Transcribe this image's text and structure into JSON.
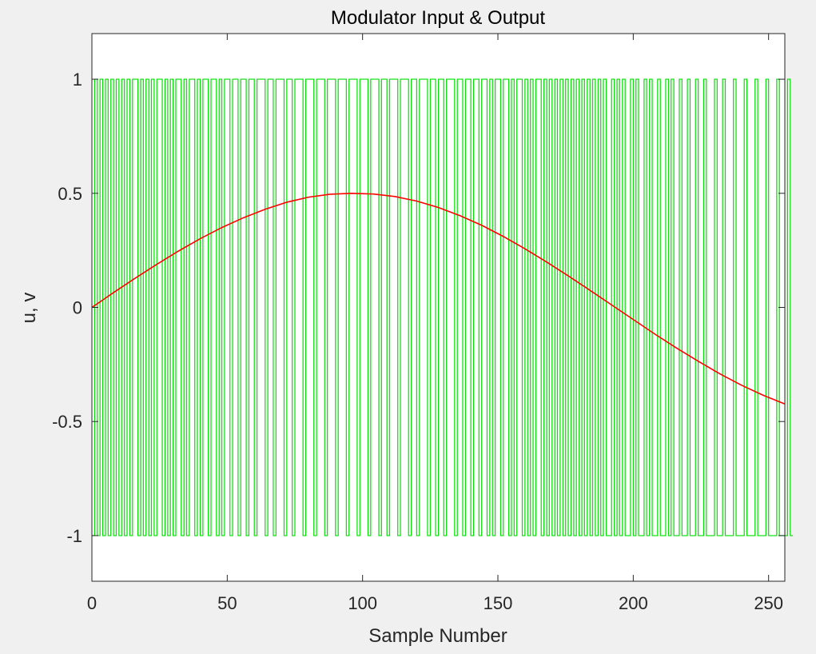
{
  "chart_data": {
    "type": "line",
    "title": "Modulator Input & Output",
    "xlabel": "Sample Number",
    "ylabel": "u, v",
    "xlim": [
      0,
      256
    ],
    "ylim": [
      -1.2,
      1.2
    ],
    "x_ticks": [
      0,
      50,
      100,
      150,
      200,
      250
    ],
    "x_tick_labels": [
      "0",
      "50",
      "100",
      "150",
      "200",
      "250"
    ],
    "y_ticks": [
      1,
      0.5,
      0,
      -0.5,
      -1
    ],
    "y_tick_labels": [
      "1",
      "0.5",
      "0",
      "-0.5",
      "-1"
    ],
    "grid": false,
    "legend": "none",
    "series": [
      {
        "style": "step",
        "color": "#00e000",
        "description": "binary output switching between -1 and 1",
        "x_start": 0,
        "x_step": 1,
        "values": [
          -1,
          1,
          -1,
          1,
          -1,
          1,
          -1,
          1,
          -1,
          1,
          -1,
          1,
          -1,
          1,
          -1,
          1,
          1,
          -1,
          1,
          -1,
          1,
          -1,
          1,
          -1,
          1,
          1,
          -1,
          1,
          -1,
          1,
          -1,
          1,
          1,
          -1,
          1,
          -1,
          1,
          1,
          -1,
          1,
          -1,
          1,
          1,
          -1,
          1,
          1,
          -1,
          1,
          -1,
          1,
          1,
          -1,
          1,
          1,
          -1,
          1,
          1,
          -1,
          1,
          1,
          -1,
          1,
          1,
          1,
          -1,
          1,
          1,
          -1,
          1,
          1,
          1,
          -1,
          1,
          1,
          -1,
          1,
          1,
          1,
          -1,
          1,
          1,
          1,
          -1,
          1,
          1,
          1,
          -1,
          1,
          1,
          1,
          -1,
          1,
          1,
          1,
          -1,
          1,
          1,
          1,
          -1,
          1,
          1,
          1,
          -1,
          1,
          1,
          1,
          -1,
          1,
          1,
          -1,
          1,
          1,
          1,
          -1,
          1,
          1,
          1,
          -1,
          1,
          1,
          -1,
          1,
          1,
          1,
          -1,
          1,
          1,
          -1,
          1,
          1,
          -1,
          1,
          1,
          1,
          -1,
          1,
          1,
          -1,
          1,
          1,
          -1,
          1,
          1,
          -1,
          1,
          1,
          -1,
          1,
          -1,
          1,
          1,
          -1,
          1,
          1,
          -1,
          1,
          -1,
          1,
          1,
          -1,
          1,
          -1,
          1,
          -1,
          1,
          1,
          -1,
          1,
          -1,
          1,
          -1,
          1,
          -1,
          1,
          -1,
          1,
          -1,
          1,
          -1,
          1,
          -1,
          1,
          -1,
          1,
          -1,
          1,
          -1,
          1,
          -1,
          1,
          -1,
          -1,
          1,
          -1,
          1,
          -1,
          1,
          -1,
          -1,
          1,
          -1,
          1,
          -1,
          -1,
          1,
          -1,
          1,
          -1,
          -1,
          1,
          -1,
          -1,
          1,
          -1,
          1,
          -1,
          -1,
          1,
          -1,
          -1,
          1,
          -1,
          -1,
          1,
          -1,
          -1,
          1,
          -1,
          -1,
          -1,
          1,
          -1,
          -1,
          1,
          -1,
          -1,
          -1,
          1,
          -1,
          -1,
          -1,
          1,
          -1,
          -1,
          -1,
          1,
          -1,
          -1,
          -1,
          1,
          -1,
          -1,
          -1,
          1,
          -1,
          -1,
          -1,
          1,
          -1
        ]
      },
      {
        "style": "line",
        "color": "#ff0000",
        "description": "sinusoidal input",
        "x": [
          0,
          8,
          16,
          24,
          32,
          40,
          48,
          56,
          64,
          72,
          80,
          88,
          96,
          104,
          112,
          120,
          128,
          136,
          144,
          152,
          160,
          168,
          176,
          184,
          192,
          200,
          208,
          216,
          224,
          232,
          240,
          248,
          256
        ],
        "values": [
          0.0,
          0.065,
          0.128,
          0.189,
          0.247,
          0.301,
          0.35,
          0.393,
          0.43,
          0.461,
          0.483,
          0.496,
          0.5,
          0.497,
          0.486,
          0.466,
          0.438,
          0.402,
          0.36,
          0.311,
          0.257,
          0.199,
          0.138,
          0.075,
          0.011,
          -0.053,
          -0.117,
          -0.178,
          -0.236,
          -0.291,
          -0.341,
          -0.385,
          -0.423
        ]
      }
    ]
  }
}
